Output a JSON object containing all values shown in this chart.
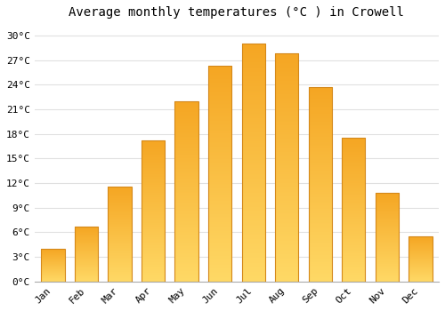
{
  "months": [
    "Jan",
    "Feb",
    "Mar",
    "Apr",
    "May",
    "Jun",
    "Jul",
    "Aug",
    "Sep",
    "Oct",
    "Nov",
    "Dec"
  ],
  "temperatures": [
    4.0,
    6.7,
    11.6,
    17.2,
    22.0,
    26.3,
    29.0,
    27.8,
    23.7,
    17.5,
    10.8,
    5.5
  ],
  "bar_color_top": "#F5A623",
  "bar_color_bottom": "#FFD966",
  "bar_border_color": "#D4881A",
  "title": "Average monthly temperatures (°C ) in Crowell",
  "ytick_values": [
    0,
    3,
    6,
    9,
    12,
    15,
    18,
    21,
    24,
    27,
    30
  ],
  "ytick_labels": [
    "0°C",
    "3°C",
    "6°C",
    "9°C",
    "12°C",
    "15°C",
    "18°C",
    "21°C",
    "24°C",
    "27°C",
    "30°C"
  ],
  "ylim": [
    0,
    31.5
  ],
  "bg_color": "#ffffff",
  "grid_color": "#e0e0e0",
  "title_fontsize": 10,
  "tick_fontsize": 8,
  "bar_width": 0.7,
  "figsize": [
    5.0,
    3.5
  ],
  "dpi": 100
}
